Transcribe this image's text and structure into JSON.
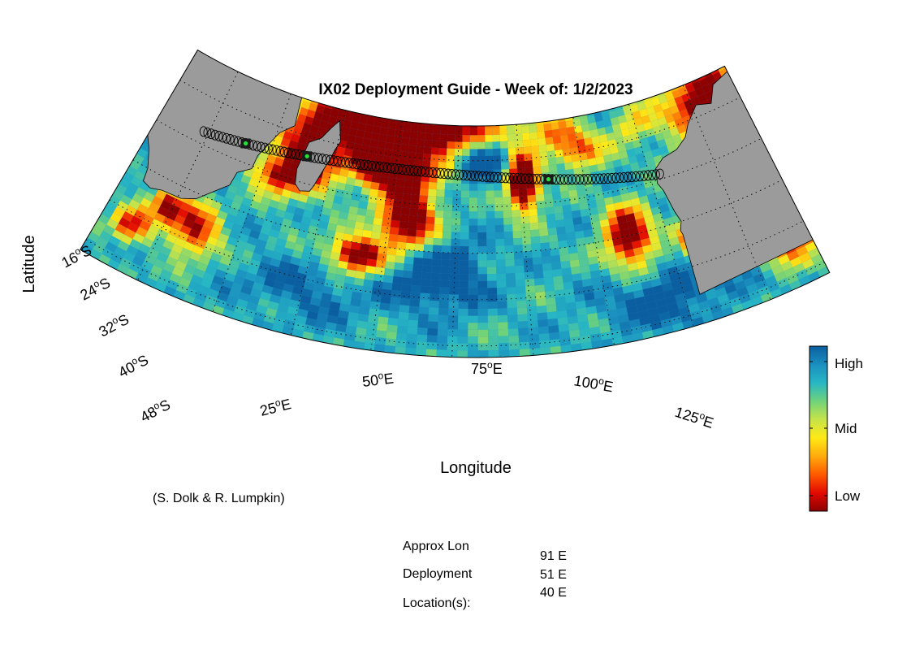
{
  "title": "IX02 Deployment Guide - Week of: 1/2/2023",
  "xlabel": "Longitude",
  "ylabel": "Latitude",
  "credit": "(S. Dolk & R. Lumpkin)",
  "lat_ticks": [
    {
      "deg": "16",
      "hemi": "S"
    },
    {
      "deg": "24",
      "hemi": "S"
    },
    {
      "deg": "32",
      "hemi": "S"
    },
    {
      "deg": "40",
      "hemi": "S"
    },
    {
      "deg": "48",
      "hemi": "S"
    }
  ],
  "lon_ticks": [
    {
      "deg": "25",
      "hemi": "E"
    },
    {
      "deg": "50",
      "hemi": "E"
    },
    {
      "deg": "75",
      "hemi": "E"
    },
    {
      "deg": "100",
      "hemi": "E"
    },
    {
      "deg": "125",
      "hemi": "E"
    }
  ],
  "colorbar": {
    "labels": [
      "High",
      "Mid",
      "Low"
    ],
    "stops": [
      "#0b5fa0",
      "#1a8fbf",
      "#27b6c4",
      "#6fd27b",
      "#c7e34a",
      "#ffe916",
      "#ffab0c",
      "#ff5a00",
      "#e20a00",
      "#8b0000"
    ]
  },
  "info": {
    "label_lines": [
      "Approx Lon",
      "Deployment",
      "Location(s):"
    ],
    "values": [
      "91 E",
      "51 E",
      "40 E"
    ]
  },
  "colors": {
    "land": "#9b9b9b",
    "marker": "#1a1a1a",
    "marker_center": "#27e03a"
  },
  "chart_data": {
    "type": "map",
    "projection": "conic sector",
    "lon_range": [
      15,
      135
    ],
    "lat_range": [
      -50,
      -10
    ],
    "colorbar_scale": [
      "Low",
      "Mid",
      "High"
    ],
    "track": "IX02 cruise line across the southern Indian Ocean (Cape Town to Fremantle)",
    "deployment_lons": [
      91,
      51,
      40
    ],
    "grid": true
  }
}
